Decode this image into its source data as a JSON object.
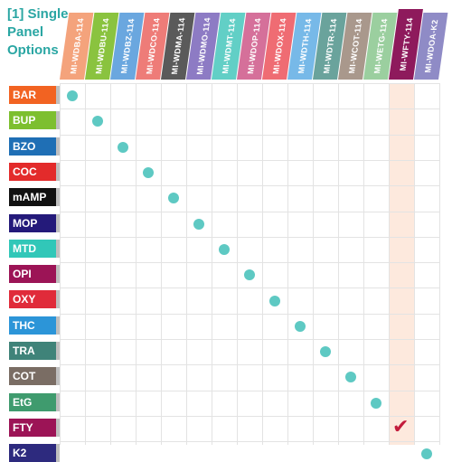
{
  "title": {
    "line1": "[1] Single",
    "line2": "Panel",
    "line3": "Options"
  },
  "columns": [
    {
      "label": "MI-WDBA-114",
      "color": "#f4a37c"
    },
    {
      "label": "MI-WDBU-114",
      "color": "#8ac33f"
    },
    {
      "label": "MI-WDBZ-114",
      "color": "#6aa7df"
    },
    {
      "label": "MI-WDCO-114",
      "color": "#ee7c78"
    },
    {
      "label": "MI-WDMA-114",
      "color": "#5a5a5a"
    },
    {
      "label": "MI-WDMO-114",
      "color": "#8d7bc4"
    },
    {
      "label": "MI-WDMT-114",
      "color": "#62cfc6"
    },
    {
      "label": "MI-WDOP-114",
      "color": "#d5709a"
    },
    {
      "label": "MI-WDOX-114",
      "color": "#ef6c73"
    },
    {
      "label": "MI-WDTH-114",
      "color": "#77b9e8"
    },
    {
      "label": "MI-WDTR-114",
      "color": "#6aa39c"
    },
    {
      "label": "MI-WCOT-114",
      "color": "#a9988c"
    },
    {
      "label": "MI-WETG-114",
      "color": "#9bcf9f"
    },
    {
      "label": "MI-WFTY-114",
      "color": "#8e1a5c"
    },
    {
      "label": "MI-WDOA-K2",
      "color": "#8f8bc6"
    }
  ],
  "rows": [
    {
      "label": "BAR",
      "color": "#f26322"
    },
    {
      "label": "BUP",
      "color": "#7dbf2f"
    },
    {
      "label": "BZO",
      "color": "#1f6fb5"
    },
    {
      "label": "COC",
      "color": "#e32b2b"
    },
    {
      "label": "mAMP",
      "color": "#111111"
    },
    {
      "label": "MOP",
      "color": "#241a7a"
    },
    {
      "label": "MTD",
      "color": "#31c7b8"
    },
    {
      "label": "OPI",
      "color": "#9c1456"
    },
    {
      "label": "OXY",
      "color": "#e02b3a"
    },
    {
      "label": "THC",
      "color": "#2c95d8"
    },
    {
      "label": "TRA",
      "color": "#3f8379"
    },
    {
      "label": "COT",
      "color": "#7a6d64"
    },
    {
      "label": "EtG",
      "color": "#3f9b6e"
    },
    {
      "label": "FTY",
      "color": "#9c1456"
    },
    {
      "label": "K2",
      "color": "#2d2a7e"
    }
  ],
  "highlight_column": 13,
  "marker_color": "#5ec9c3",
  "check_color": "#c31b3b",
  "highlight_color": "#fde9dd",
  "check_glyph": "✔"
}
